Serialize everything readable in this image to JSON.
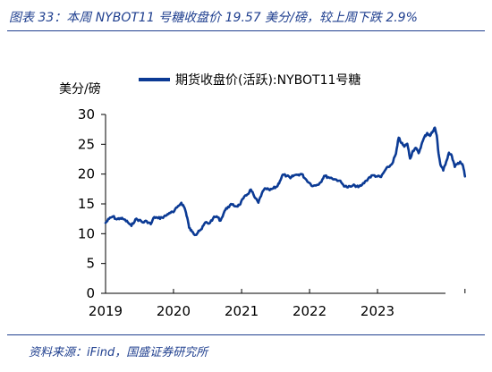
{
  "header": {
    "title": "图表 33：本周 NYBOT11 号糖收盘价 19.57 美分/磅，较上周下跌 2.9%"
  },
  "footer": {
    "source": "资料来源：iFind，国盛证券研究所"
  },
  "chart_data": {
    "type": "line",
    "title": "",
    "xlabel": "",
    "ylabel": "美分/磅",
    "ylim": [
      0,
      30
    ],
    "yticks": [
      "0",
      "5",
      "10",
      "15",
      "20",
      "25",
      "30"
    ],
    "xticks": [
      "2019",
      "2020",
      "2021",
      "2022",
      "2023"
    ],
    "grid": false,
    "legend": "top-center",
    "line_color": "#0b3a94",
    "series": [
      {
        "name": "期货收盘价(活跃):NYBOT11号糖",
        "points": [
          [
            "2019-01-01",
            11.8
          ],
          [
            "2019-01-20",
            12.5
          ],
          [
            "2019-02-10",
            12.9
          ],
          [
            "2019-03-01",
            12.4
          ],
          [
            "2019-03-20",
            12.6
          ],
          [
            "2019-04-10",
            12.4
          ],
          [
            "2019-05-01",
            11.9
          ],
          [
            "2019-05-20",
            11.3
          ],
          [
            "2019-06-10",
            12.4
          ],
          [
            "2019-07-01",
            12.3
          ],
          [
            "2019-07-20",
            11.9
          ],
          [
            "2019-08-10",
            12.1
          ],
          [
            "2019-09-01",
            11.6
          ],
          [
            "2019-09-20",
            12.8
          ],
          [
            "2019-10-10",
            12.6
          ],
          [
            "2019-11-01",
            12.7
          ],
          [
            "2019-11-20",
            13.0
          ],
          [
            "2019-12-10",
            13.5
          ],
          [
            "2020-01-01",
            13.6
          ],
          [
            "2020-01-20",
            14.4
          ],
          [
            "2020-02-12",
            15.2
          ],
          [
            "2020-03-01",
            14.3
          ],
          [
            "2020-03-15",
            12.7
          ],
          [
            "2020-03-25",
            11.0
          ],
          [
            "2020-04-10",
            10.3
          ],
          [
            "2020-04-28",
            9.8
          ],
          [
            "2020-05-15",
            10.5
          ],
          [
            "2020-06-01",
            10.8
          ],
          [
            "2020-06-20",
            11.9
          ],
          [
            "2020-07-10",
            11.7
          ],
          [
            "2020-08-01",
            12.6
          ],
          [
            "2020-08-20",
            12.9
          ],
          [
            "2020-09-10",
            12.2
          ],
          [
            "2020-10-01",
            13.8
          ],
          [
            "2020-10-20",
            14.5
          ],
          [
            "2020-11-10",
            14.9
          ],
          [
            "2020-12-01",
            14.6
          ],
          [
            "2020-12-20",
            14.8
          ],
          [
            "2021-01-10",
            15.9
          ],
          [
            "2021-02-01",
            16.6
          ],
          [
            "2021-02-20",
            17.4
          ],
          [
            "2021-03-10",
            16.2
          ],
          [
            "2021-04-01",
            15.2
          ],
          [
            "2021-04-20",
            16.8
          ],
          [
            "2021-05-10",
            17.6
          ],
          [
            "2021-06-01",
            17.3
          ],
          [
            "2021-06-20",
            17.6
          ],
          [
            "2021-07-10",
            17.9
          ],
          [
            "2021-07-25",
            18.8
          ],
          [
            "2021-08-10",
            19.9
          ],
          [
            "2021-09-01",
            19.7
          ],
          [
            "2021-09-20",
            19.3
          ],
          [
            "2021-10-10",
            19.8
          ],
          [
            "2021-11-01",
            19.9
          ],
          [
            "2021-11-20",
            20.0
          ],
          [
            "2021-12-10",
            19.2
          ],
          [
            "2022-01-01",
            18.5
          ],
          [
            "2022-01-20",
            18.0
          ],
          [
            "2022-02-10",
            18.2
          ],
          [
            "2022-03-01",
            18.6
          ],
          [
            "2022-03-20",
            19.7
          ],
          [
            "2022-04-10",
            19.5
          ],
          [
            "2022-05-01",
            19.3
          ],
          [
            "2022-05-20",
            19.1
          ],
          [
            "2022-06-10",
            18.9
          ],
          [
            "2022-07-01",
            18.2
          ],
          [
            "2022-07-20",
            17.8
          ],
          [
            "2022-08-10",
            17.9
          ],
          [
            "2022-09-01",
            18.1
          ],
          [
            "2022-09-20",
            17.8
          ],
          [
            "2022-10-10",
            18.2
          ],
          [
            "2022-11-01",
            18.9
          ],
          [
            "2022-11-20",
            19.5
          ],
          [
            "2022-12-10",
            19.8
          ],
          [
            "2023-01-01",
            19.6
          ],
          [
            "2023-01-20",
            19.5
          ],
          [
            "2023-02-10",
            20.6
          ],
          [
            "2023-03-01",
            21.2
          ],
          [
            "2023-03-20",
            21.7
          ],
          [
            "2023-04-10",
            23.4
          ],
          [
            "2023-04-25",
            26.1
          ],
          [
            "2023-05-10",
            25.2
          ],
          [
            "2023-05-25",
            24.6
          ],
          [
            "2023-06-10",
            25.1
          ],
          [
            "2023-06-25",
            22.6
          ],
          [
            "2023-07-10",
            23.9
          ],
          [
            "2023-07-25",
            24.4
          ],
          [
            "2023-08-10",
            23.5
          ],
          [
            "2023-08-25",
            24.9
          ],
          [
            "2023-09-10",
            26.2
          ],
          [
            "2023-09-25",
            26.9
          ],
          [
            "2023-10-10",
            26.4
          ],
          [
            "2023-10-25",
            27.2
          ],
          [
            "2023-11-05",
            27.8
          ],
          [
            "2023-11-15",
            26.5
          ],
          [
            "2023-11-25",
            23.5
          ],
          [
            "2023-12-05",
            21.6
          ],
          [
            "2023-12-20",
            20.6
          ],
          [
            "2024-01-05",
            22.1
          ],
          [
            "2024-01-20",
            23.6
          ],
          [
            "2024-02-05",
            23.0
          ],
          [
            "2024-02-20",
            21.2
          ],
          [
            "2024-03-05",
            21.7
          ],
          [
            "2024-03-20",
            22.1
          ],
          [
            "2024-04-05",
            21.3
          ],
          [
            "2024-04-15",
            19.6
          ]
        ]
      }
    ]
  }
}
